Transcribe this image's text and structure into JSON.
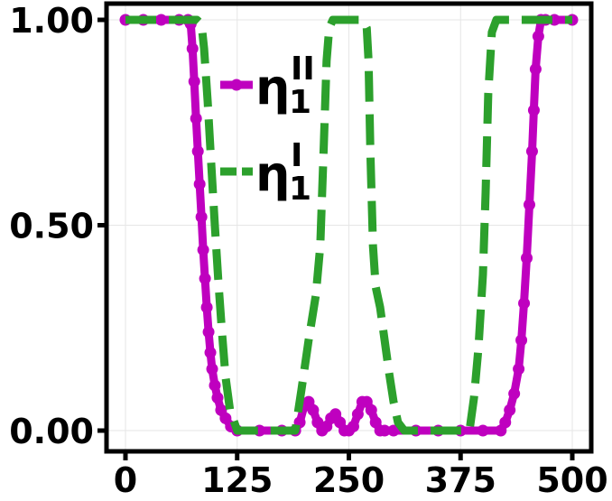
{
  "chart_data": {
    "type": "line",
    "title": "",
    "xlabel": "",
    "ylabel": "",
    "xlim": [
      -5,
      505
    ],
    "ylim": [
      -0.05,
      1.05
    ],
    "grid": true,
    "legend_placement": "upper-left",
    "x_ticks": [
      {
        "value": 0,
        "label": "0"
      },
      {
        "value": 125,
        "label": "125"
      },
      {
        "value": 250,
        "label": "250"
      },
      {
        "value": 375,
        "label": "375"
      },
      {
        "value": 500,
        "label": "500"
      }
    ],
    "y_ticks": [
      {
        "value": 0,
        "label": "0.00"
      },
      {
        "value": 0.5,
        "label": "0.50"
      },
      {
        "value": 1,
        "label": "1.00"
      }
    ],
    "series": [
      {
        "name": "η₁ᴵᴵ",
        "legend_base": "η",
        "legend_sub": "1",
        "legend_sup": "II",
        "color": "#bf00bf",
        "style": "solid-markers",
        "x": [
          0,
          20,
          40,
          60,
          70,
          73,
          75,
          77,
          79,
          81,
          83,
          85,
          87,
          89,
          91,
          93,
          95,
          97,
          100,
          103,
          107,
          112,
          118,
          125,
          150,
          175,
          190,
          195,
          200,
          205,
          210,
          215,
          220,
          225,
          230,
          235,
          240,
          245,
          250,
          255,
          260,
          265,
          270,
          275,
          280,
          285,
          290,
          300,
          325,
          350,
          375,
          400,
          420,
          425,
          430,
          435,
          440,
          443,
          446,
          449,
          452,
          455,
          457,
          459,
          462,
          465,
          470,
          480,
          500
        ],
        "y": [
          1.0,
          1.0,
          1.0,
          1.0,
          1.0,
          0.99,
          0.93,
          0.85,
          0.76,
          0.68,
          0.6,
          0.52,
          0.44,
          0.37,
          0.3,
          0.24,
          0.19,
          0.15,
          0.11,
          0.08,
          0.05,
          0.03,
          0.01,
          0.0,
          0.0,
          0.0,
          0.0,
          0.02,
          0.06,
          0.07,
          0.05,
          0.02,
          0.0,
          0.01,
          0.03,
          0.04,
          0.02,
          0.0,
          0.0,
          0.01,
          0.04,
          0.07,
          0.07,
          0.05,
          0.02,
          0.0,
          0.0,
          0.0,
          0.0,
          0.0,
          0.0,
          0.0,
          0.0,
          0.02,
          0.05,
          0.09,
          0.15,
          0.22,
          0.31,
          0.42,
          0.55,
          0.68,
          0.78,
          0.88,
          0.96,
          1.0,
          1.0,
          1.0,
          1.0
        ]
      },
      {
        "name": "η₁ᴵ",
        "legend_base": "η",
        "legend_sub": "1",
        "legend_sup": "I",
        "color": "#2ca02c",
        "style": "dashed",
        "x": [
          0,
          40,
          80,
          85,
          88,
          92,
          96,
          100,
          104,
          108,
          112,
          117,
          125,
          150,
          175,
          190,
          197,
          205,
          213,
          218,
          222,
          225,
          228,
          232,
          240,
          250,
          265,
          270,
          272,
          274,
          277,
          280,
          285,
          290,
          295,
          300,
          305,
          312,
          325,
          350,
          375,
          385,
          390,
          395,
          400,
          403,
          406,
          410,
          415,
          425,
          450,
          475,
          500
        ],
        "y": [
          1.0,
          1.0,
          1.0,
          0.99,
          0.93,
          0.8,
          0.65,
          0.5,
          0.36,
          0.24,
          0.13,
          0.05,
          0.0,
          0.0,
          0.0,
          0.0,
          0.1,
          0.22,
          0.33,
          0.45,
          0.7,
          0.9,
          0.98,
          1.0,
          1.0,
          1.0,
          1.0,
          0.98,
          0.9,
          0.68,
          0.45,
          0.35,
          0.3,
          0.22,
          0.14,
          0.07,
          0.02,
          0.0,
          0.0,
          0.0,
          0.0,
          0.0,
          0.08,
          0.2,
          0.38,
          0.58,
          0.82,
          0.97,
          1.0,
          1.0,
          1.0,
          1.0,
          1.0
        ]
      }
    ]
  }
}
